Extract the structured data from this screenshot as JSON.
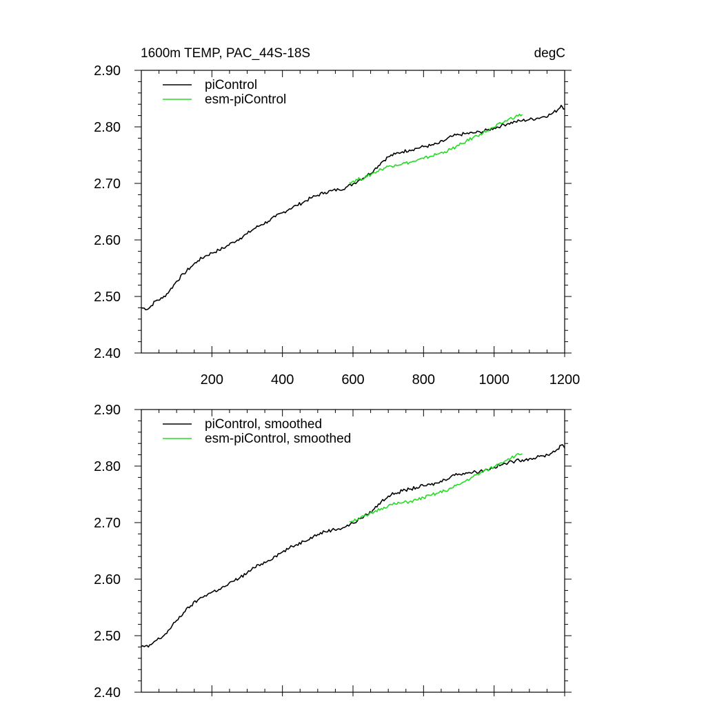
{
  "figure": {
    "title_left": "1600m TEMP, PAC_44S-18S",
    "title_right": "degC"
  },
  "colors": {
    "picontrol": "#000000",
    "esm_picontrol": "#22dd22"
  },
  "chart_data": [
    {
      "type": "line",
      "title": "1600m TEMP, PAC_44S-18S",
      "units": "degC",
      "xlim": [
        0,
        1200
      ],
      "ylim": [
        2.4,
        2.9
      ],
      "x_ticks": [
        200,
        400,
        600,
        800,
        1000,
        1200
      ],
      "x_tick_labels": [
        "200",
        "400",
        "600",
        "800",
        "1000",
        "1200"
      ],
      "y_ticks": [
        2.4,
        2.5,
        2.6,
        2.7,
        2.8,
        2.9
      ],
      "y_tick_labels": [
        "2.40",
        "2.50",
        "2.60",
        "2.70",
        "2.80",
        "2.90"
      ],
      "legend_position": "top-left",
      "series": [
        {
          "name": "piControl",
          "color": "#000000",
          "points": [
            [
              0,
              2.48
            ],
            [
              20,
              2.478
            ],
            [
              40,
              2.492
            ],
            [
              60,
              2.497
            ],
            [
              80,
              2.51
            ],
            [
              100,
              2.527
            ],
            [
              120,
              2.54
            ],
            [
              140,
              2.552
            ],
            [
              160,
              2.563
            ],
            [
              180,
              2.571
            ],
            [
              200,
              2.577
            ],
            [
              220,
              2.582
            ],
            [
              240,
              2.588
            ],
            [
              260,
              2.596
            ],
            [
              280,
              2.603
            ],
            [
              300,
              2.611
            ],
            [
              320,
              2.62
            ],
            [
              340,
              2.627
            ],
            [
              360,
              2.633
            ],
            [
              380,
              2.641
            ],
            [
              400,
              2.648
            ],
            [
              420,
              2.655
            ],
            [
              440,
              2.661
            ],
            [
              460,
              2.667
            ],
            [
              480,
              2.674
            ],
            [
              500,
              2.679
            ],
            [
              520,
              2.684
            ],
            [
              540,
              2.687
            ],
            [
              560,
              2.689
            ],
            [
              580,
              2.693
            ],
            [
              600,
              2.699
            ],
            [
              620,
              2.707
            ],
            [
              640,
              2.714
            ],
            [
              660,
              2.724
            ],
            [
              680,
              2.737
            ],
            [
              700,
              2.747
            ],
            [
              720,
              2.752
            ],
            [
              740,
              2.756
            ],
            [
              760,
              2.759
            ],
            [
              780,
              2.762
            ],
            [
              800,
              2.765
            ],
            [
              820,
              2.767
            ],
            [
              840,
              2.77
            ],
            [
              860,
              2.776
            ],
            [
              880,
              2.783
            ],
            [
              900,
              2.786
            ],
            [
              920,
              2.788
            ],
            [
              940,
              2.789
            ],
            [
              960,
              2.791
            ],
            [
              980,
              2.794
            ],
            [
              1000,
              2.798
            ],
            [
              1020,
              2.802
            ],
            [
              1040,
              2.806
            ],
            [
              1060,
              2.809
            ],
            [
              1080,
              2.811
            ],
            [
              1100,
              2.813
            ],
            [
              1120,
              2.815
            ],
            [
              1140,
              2.818
            ],
            [
              1160,
              2.822
            ],
            [
              1180,
              2.83
            ],
            [
              1190,
              2.838
            ],
            [
              1200,
              2.832
            ]
          ]
        },
        {
          "name": "esm-piControl",
          "color": "#22dd22",
          "points": [
            [
              590,
              2.702
            ],
            [
              620,
              2.708
            ],
            [
              640,
              2.712
            ],
            [
              660,
              2.719
            ],
            [
              680,
              2.725
            ],
            [
              700,
              2.73
            ],
            [
              720,
              2.733
            ],
            [
              740,
              2.735
            ],
            [
              760,
              2.737
            ],
            [
              780,
              2.74
            ],
            [
              800,
              2.744
            ],
            [
              820,
              2.748
            ],
            [
              840,
              2.752
            ],
            [
              860,
              2.756
            ],
            [
              880,
              2.761
            ],
            [
              900,
              2.767
            ],
            [
              920,
              2.774
            ],
            [
              940,
              2.781
            ],
            [
              960,
              2.787
            ],
            [
              980,
              2.793
            ],
            [
              1000,
              2.799
            ],
            [
              1020,
              2.806
            ],
            [
              1040,
              2.813
            ],
            [
              1060,
              2.818
            ],
            [
              1080,
              2.822
            ]
          ]
        }
      ]
    },
    {
      "type": "line",
      "xlim": [
        0,
        1200
      ],
      "ylim": [
        2.4,
        2.9
      ],
      "y_ticks": [
        2.4,
        2.5,
        2.6,
        2.7,
        2.8,
        2.9
      ],
      "y_tick_labels": [
        "2.40",
        "2.50",
        "2.60",
        "2.70",
        "2.80",
        "2.90"
      ],
      "legend_position": "top-left",
      "series": [
        {
          "name": "piControl, smoothed",
          "color": "#000000",
          "points": [
            [
              0,
              2.481
            ],
            [
              20,
              2.48
            ],
            [
              40,
              2.491
            ],
            [
              60,
              2.498
            ],
            [
              80,
              2.511
            ],
            [
              100,
              2.527
            ],
            [
              120,
              2.541
            ],
            [
              140,
              2.553
            ],
            [
              160,
              2.563
            ],
            [
              180,
              2.571
            ],
            [
              200,
              2.577
            ],
            [
              220,
              2.582
            ],
            [
              240,
              2.588
            ],
            [
              260,
              2.596
            ],
            [
              280,
              2.603
            ],
            [
              300,
              2.611
            ],
            [
              320,
              2.62
            ],
            [
              340,
              2.627
            ],
            [
              360,
              2.633
            ],
            [
              380,
              2.641
            ],
            [
              400,
              2.648
            ],
            [
              420,
              2.655
            ],
            [
              440,
              2.661
            ],
            [
              460,
              2.667
            ],
            [
              480,
              2.674
            ],
            [
              500,
              2.679
            ],
            [
              520,
              2.684
            ],
            [
              540,
              2.687
            ],
            [
              560,
              2.689
            ],
            [
              580,
              2.693
            ],
            [
              600,
              2.699
            ],
            [
              620,
              2.707
            ],
            [
              640,
              2.714
            ],
            [
              660,
              2.724
            ],
            [
              680,
              2.737
            ],
            [
              700,
              2.747
            ],
            [
              720,
              2.752
            ],
            [
              740,
              2.756
            ],
            [
              760,
              2.759
            ],
            [
              780,
              2.762
            ],
            [
              800,
              2.765
            ],
            [
              820,
              2.767
            ],
            [
              840,
              2.77
            ],
            [
              860,
              2.776
            ],
            [
              880,
              2.783
            ],
            [
              900,
              2.786
            ],
            [
              920,
              2.788
            ],
            [
              940,
              2.789
            ],
            [
              960,
              2.791
            ],
            [
              980,
              2.794
            ],
            [
              1000,
              2.798
            ],
            [
              1020,
              2.802
            ],
            [
              1040,
              2.806
            ],
            [
              1060,
              2.809
            ],
            [
              1080,
              2.811
            ],
            [
              1100,
              2.813
            ],
            [
              1120,
              2.815
            ],
            [
              1140,
              2.818
            ],
            [
              1160,
              2.822
            ],
            [
              1180,
              2.83
            ],
            [
              1190,
              2.837
            ],
            [
              1200,
              2.832
            ]
          ]
        },
        {
          "name": "esm-piControl, smoothed",
          "color": "#22dd22",
          "points": [
            [
              590,
              2.702
            ],
            [
              620,
              2.708
            ],
            [
              640,
              2.712
            ],
            [
              660,
              2.719
            ],
            [
              680,
              2.725
            ],
            [
              700,
              2.73
            ],
            [
              720,
              2.733
            ],
            [
              740,
              2.735
            ],
            [
              760,
              2.737
            ],
            [
              780,
              2.74
            ],
            [
              800,
              2.744
            ],
            [
              820,
              2.748
            ],
            [
              840,
              2.752
            ],
            [
              860,
              2.756
            ],
            [
              880,
              2.761
            ],
            [
              900,
              2.767
            ],
            [
              920,
              2.774
            ],
            [
              940,
              2.781
            ],
            [
              960,
              2.787
            ],
            [
              980,
              2.793
            ],
            [
              1000,
              2.799
            ],
            [
              1020,
              2.806
            ],
            [
              1040,
              2.813
            ],
            [
              1060,
              2.818
            ],
            [
              1080,
              2.822
            ]
          ]
        }
      ]
    }
  ]
}
